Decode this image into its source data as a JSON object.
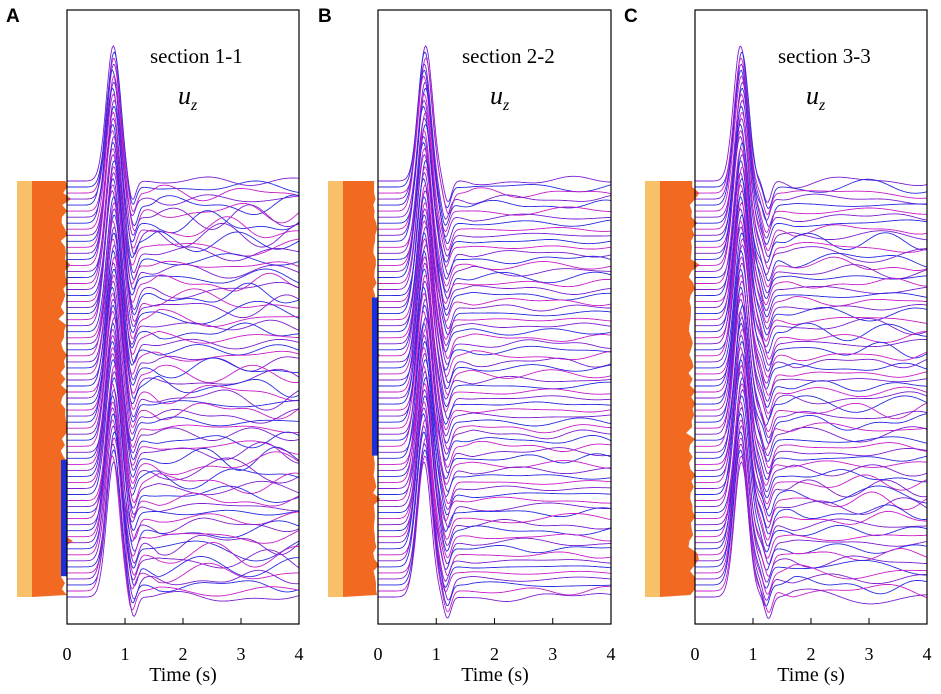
{
  "figure": {
    "description_panels": [
      "A",
      "B",
      "C"
    ]
  },
  "colors": {
    "trace_a": "#7b1fd0",
    "trace_b": "#2a2ae0",
    "trace_c": "#c81fc8",
    "soil_light": "#f8c068",
    "soil_dark": "#f26a22",
    "stiff": "#1a2fd8",
    "frame": "#000000"
  },
  "chart_data": [
    {
      "type": "line",
      "panel_label": "A",
      "title": "section 1-1",
      "component_symbol": "u",
      "component_subscript": "z",
      "xlabel": "Time (s)",
      "ylabel": "",
      "xlim": [
        0,
        4
      ],
      "xticks": [
        0,
        1,
        2,
        3,
        4
      ],
      "xtick_labels": [
        "0",
        "1",
        "2",
        "3",
        "4"
      ],
      "n_traces": 70,
      "peak_time": 0.8,
      "trough_time": 1.13,
      "peak_amplitude_rel": 1.0,
      "scatter_strength": 0.85,
      "stiff_layer_depth_fraction": [
        0.67,
        0.95
      ],
      "trace_shape": "Ricker-like pulse, peak near t=0.8 s, trough near t=1.1 s, coda oscillations after 1.3 s"
    },
    {
      "type": "line",
      "panel_label": "B",
      "title": "section 2-2",
      "component_symbol": "u",
      "component_subscript": "z",
      "xlabel": "Time (s)",
      "ylabel": "",
      "xlim": [
        0,
        4
      ],
      "xticks": [
        0,
        1,
        2,
        3,
        4
      ],
      "xtick_labels": [
        "0",
        "1",
        "2",
        "3",
        "4"
      ],
      "n_traces": 70,
      "peak_time": 0.8,
      "trough_time": 1.18,
      "peak_amplitude_rel": 1.0,
      "scatter_strength": 0.35,
      "stiff_layer_depth_fraction": [
        0.28,
        0.66
      ],
      "trace_shape": "Ricker-like pulse, peak near t=0.8 s, trough near t=1.2 s, weak coda"
    },
    {
      "type": "line",
      "panel_label": "C",
      "title": "section 3-3",
      "component_symbol": "u",
      "component_subscript": "z",
      "xlabel": "Time (s)",
      "ylabel": "",
      "xlim": [
        0,
        4
      ],
      "xticks": [
        0,
        1,
        2,
        3,
        4
      ],
      "xtick_labels": [
        "0",
        "1",
        "2",
        "3",
        "4"
      ],
      "n_traces": 70,
      "peak_time": 0.8,
      "trough_time": 1.25,
      "peak_amplitude_rel": 1.0,
      "scatter_strength": 0.6,
      "stiff_layer_depth_fraction": [],
      "trace_shape": "Ricker-like pulse, peak near t=0.8 s, trough near t=1.25 s, coda after 1.5 s"
    }
  ]
}
